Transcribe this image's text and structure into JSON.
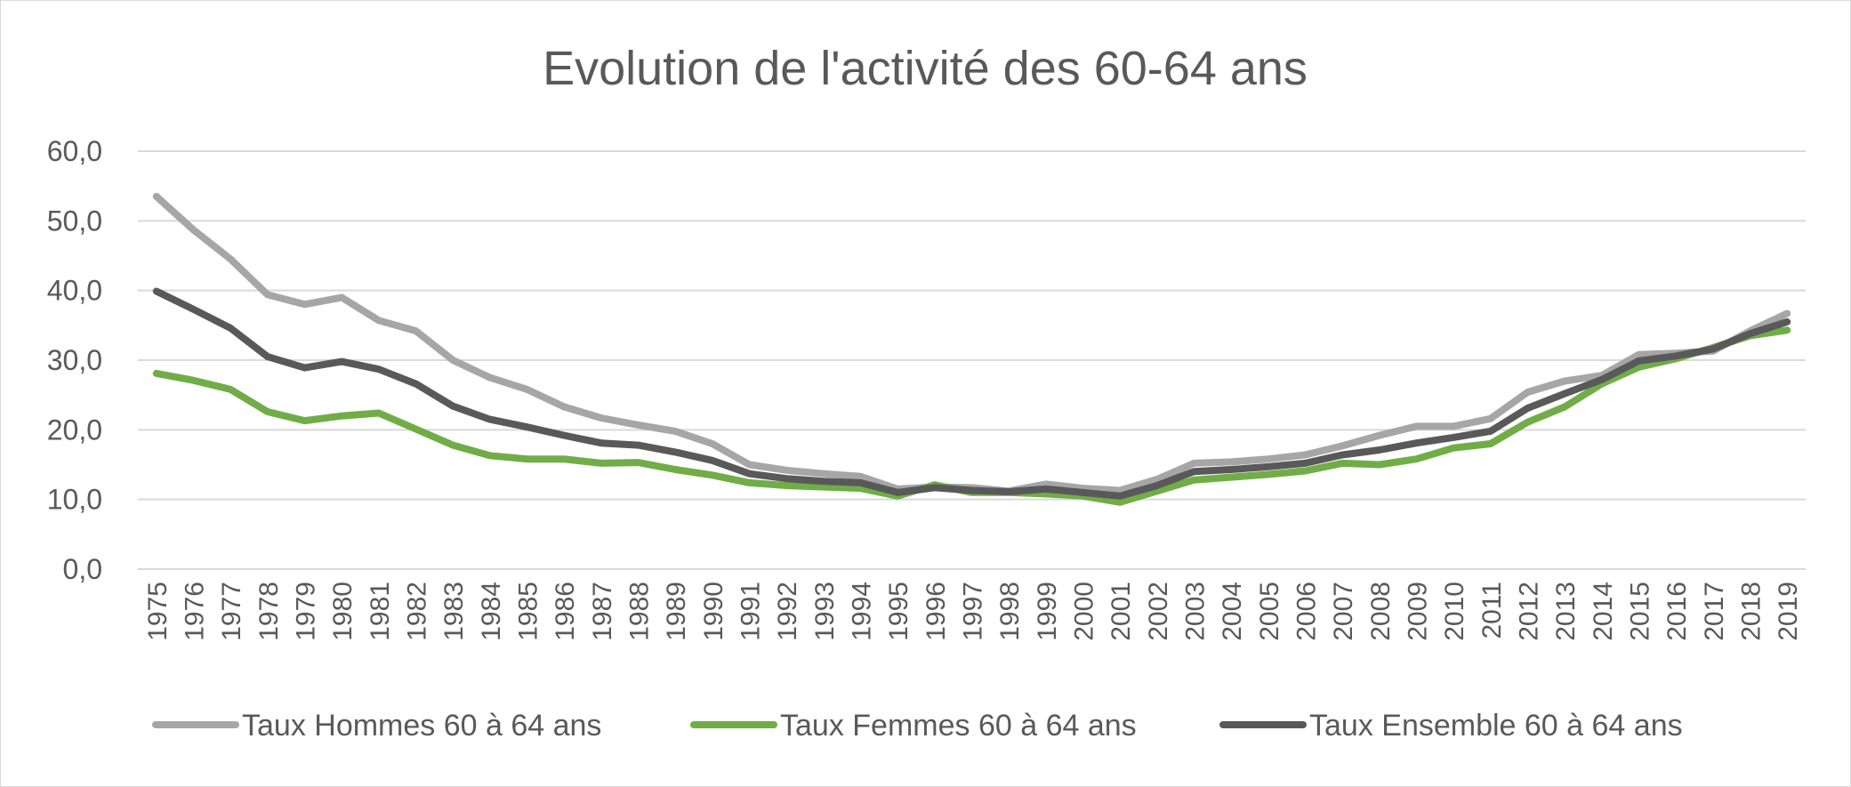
{
  "chart_data": {
    "type": "line",
    "title": "Evolution de l'activité des 60-64 ans",
    "xlabel": "",
    "ylabel": "",
    "ylim": [
      0,
      60
    ],
    "yticks": [
      "0,0",
      "10,0",
      "20,0",
      "30,0",
      "40,0",
      "50,0",
      "60,0"
    ],
    "grid": true,
    "legend_position": "bottom",
    "x": [
      "1975",
      "1976",
      "1977",
      "1978",
      "1979",
      "1980",
      "1981",
      "1982",
      "1983",
      "1984",
      "1985",
      "1986",
      "1987",
      "1988",
      "1989",
      "1990",
      "1991",
      "1992",
      "1993",
      "1994",
      "1995",
      "1996",
      "1997",
      "1998",
      "1999",
      "2000",
      "2001",
      "2002",
      "2003",
      "2004",
      "2005",
      "2006",
      "2007",
      "2008",
      "2009",
      "2010",
      "2011",
      "2012",
      "2013",
      "2014",
      "2015",
      "2016",
      "2017",
      "2018",
      "2019"
    ],
    "series": [
      {
        "name": "Taux Hommes 60 à 64 ans",
        "color": "#a6a6a6",
        "values": [
          53.5,
          48.7,
          44.5,
          39.4,
          38.0,
          39.0,
          35.7,
          34.2,
          30.0,
          27.5,
          25.8,
          23.3,
          21.7,
          20.7,
          19.8,
          18.0,
          15.0,
          14.2,
          13.7,
          13.3,
          11.5,
          11.8,
          11.7,
          11.2,
          12.2,
          11.6,
          11.3,
          12.9,
          15.2,
          15.4,
          15.8,
          16.4,
          17.7,
          19.2,
          20.5,
          20.5,
          21.6,
          25.4,
          27.0,
          27.8,
          30.8,
          31.0,
          31.3,
          34.2,
          36.7
        ]
      },
      {
        "name": "Taux Femmes 60 à 64 ans",
        "color": "#70ad47",
        "values": [
          28.1,
          27.1,
          25.8,
          22.6,
          21.3,
          22.0,
          22.4,
          20.1,
          17.8,
          16.3,
          15.8,
          15.8,
          15.2,
          15.3,
          14.3,
          13.5,
          12.4,
          12.0,
          11.8,
          11.6,
          10.5,
          12.1,
          11.0,
          11.0,
          10.8,
          10.5,
          9.6,
          11.2,
          12.8,
          13.2,
          13.6,
          14.1,
          15.2,
          15.0,
          15.8,
          17.4,
          18.0,
          21.1,
          23.3,
          26.6,
          29.0,
          30.2,
          31.8,
          33.5,
          34.3
        ]
      },
      {
        "name": "Taux Ensemble 60 à 64 ans",
        "color": "#595959",
        "values": [
          39.9,
          37.3,
          34.6,
          30.5,
          28.9,
          29.8,
          28.7,
          26.6,
          23.4,
          21.5,
          20.4,
          19.2,
          18.1,
          17.8,
          16.8,
          15.6,
          13.7,
          13.0,
          12.6,
          12.4,
          11.0,
          11.7,
          11.3,
          11.1,
          11.5,
          11.0,
          10.5,
          12.0,
          14.0,
          14.3,
          14.7,
          15.2,
          16.4,
          17.1,
          18.1,
          18.9,
          19.8,
          23.1,
          25.2,
          27.2,
          29.9,
          30.6,
          31.6,
          33.8,
          35.5
        ]
      }
    ]
  }
}
